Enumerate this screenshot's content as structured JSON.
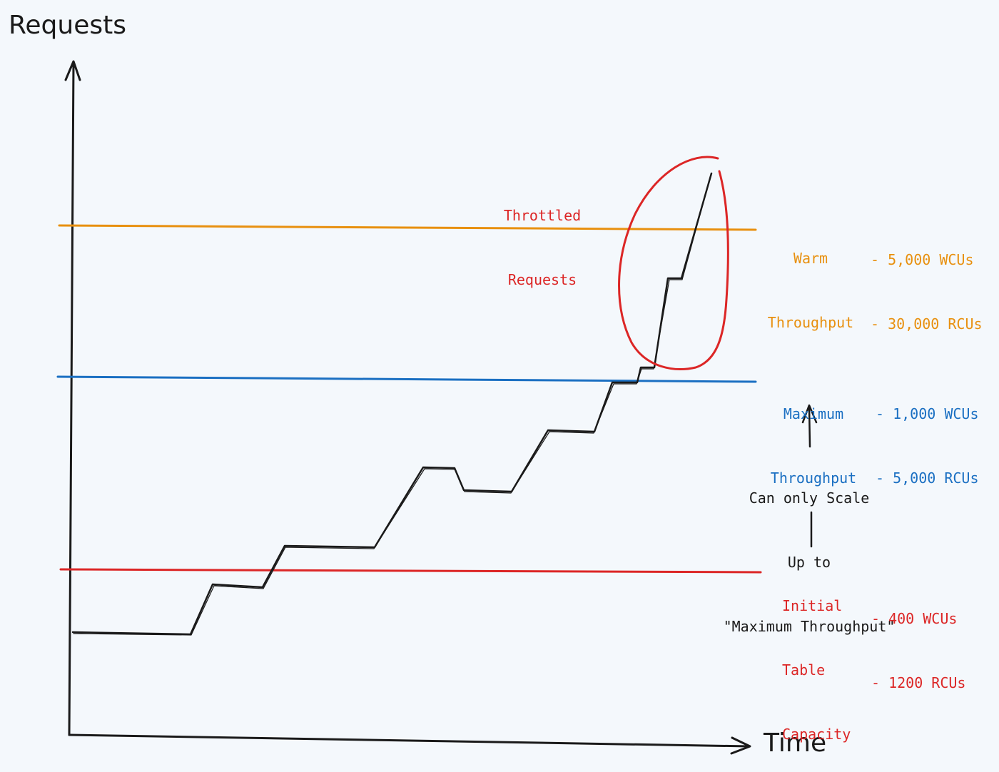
{
  "axes": {
    "y_label": "Requests",
    "x_label": "Time"
  },
  "throttled": {
    "line1": "Throttled",
    "line2": "Requests"
  },
  "warm": {
    "line1": "Warm",
    "line2": "Throughput",
    "wcu": "- 5,000 WCUs",
    "rcu": "- 30,000 RCUs"
  },
  "maximum": {
    "line1": "Maximum",
    "line2": "Throughput",
    "wcu": "- 1,000 WCUs",
    "rcu": "- 5,000 RCUs"
  },
  "initial": {
    "line1": "Initial",
    "line2": "Table",
    "line3": "Capacity",
    "wcu": "- 400 WCUs",
    "rcu": "- 1200 RCUs"
  },
  "scale_note": {
    "line1": "Can only Scale",
    "line2": "Up to",
    "line3": "\"Maximum Throughput\""
  },
  "colors": {
    "warm": "#e8900f",
    "maximum": "#1a6fc2",
    "initial": "#dc2626",
    "line": "#1a1a1a",
    "background": "#f4f8fc"
  }
}
